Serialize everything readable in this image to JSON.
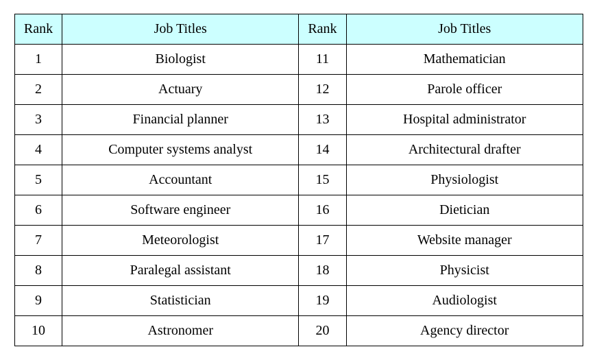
{
  "table": {
    "columns": [
      "Rank",
      "Job Titles",
      "Rank",
      "Job Titles"
    ],
    "header_bg": "#ccffff",
    "border_color": "#000000",
    "font_family": "Times New Roman, serif",
    "cell_fontsize": 20,
    "rows": [
      {
        "rank_a": "1",
        "title_a": "Biologist",
        "rank_b": "11",
        "title_b": "Mathematician"
      },
      {
        "rank_a": "2",
        "title_a": "Actuary",
        "rank_b": "12",
        "title_b": "Parole officer"
      },
      {
        "rank_a": "3",
        "title_a": "Financial planner",
        "rank_b": "13",
        "title_b": "Hospital administrator"
      },
      {
        "rank_a": "4",
        "title_a": "Computer systems analyst",
        "rank_b": "14",
        "title_b": "Architectural drafter"
      },
      {
        "rank_a": "5",
        "title_a": "Accountant",
        "rank_b": "15",
        "title_b": "Physiologist"
      },
      {
        "rank_a": "6",
        "title_a": "Software engineer",
        "rank_b": "16",
        "title_b": "Dietician"
      },
      {
        "rank_a": "7",
        "title_a": "Meteorologist",
        "rank_b": "17",
        "title_b": "Website manager"
      },
      {
        "rank_a": "8",
        "title_a": "Paralegal assistant",
        "rank_b": "18",
        "title_b": "Physicist"
      },
      {
        "rank_a": "9",
        "title_a": "Statistician",
        "rank_b": "19",
        "title_b": "Audiologist"
      },
      {
        "rank_a": "10",
        "title_a": "Astronomer",
        "rank_b": "20",
        "title_b": "Agency director"
      }
    ]
  }
}
